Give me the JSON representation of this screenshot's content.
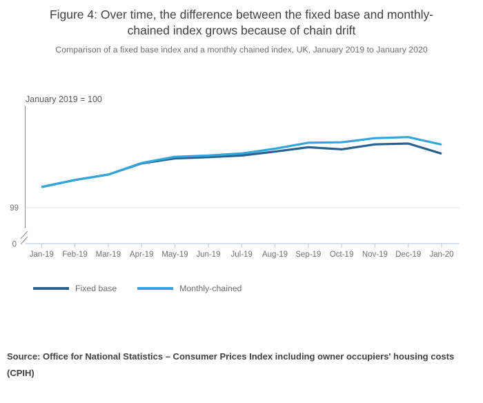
{
  "figure": {
    "title": "Figure 4: Over time, the difference between the fixed base and monthly-chained index grows because of chain drift",
    "subtitle": "Comparison of a fixed base index and a monthly chained index, UK, January 2019 to January 2020"
  },
  "chart_data": {
    "type": "line",
    "axis_note": "January 2019 = 100",
    "categories": [
      "Jan-19",
      "Feb-19",
      "Mar-19",
      "Apr-19",
      "May-19",
      "Jun-19",
      "Jul-19",
      "Aug-19",
      "Sep-19",
      "Oct-19",
      "Nov-19",
      "Dec-19",
      "Jan-20"
    ],
    "series": [
      {
        "name": "Fixed base",
        "color": "#266192",
        "values": [
          100,
          100.34,
          100.6,
          101.14,
          101.38,
          101.44,
          101.52,
          101.71,
          101.92,
          101.82,
          102.06,
          102.1,
          101.61
        ]
      },
      {
        "name": "Monthly-chained",
        "color": "#34A5DA",
        "values": [
          100,
          100.34,
          100.6,
          101.16,
          101.46,
          101.52,
          101.62,
          101.85,
          102.14,
          102.16,
          102.36,
          102.41,
          102.05
        ]
      }
    ],
    "y_axis": {
      "visible_tick_labels": [
        "99",
        "0"
      ],
      "broken_axis": true,
      "base_value": 100,
      "gridline_values": [
        99
      ]
    },
    "x_axis": {
      "label": "",
      "tick_count": 13
    },
    "legend_position": "bottom-left",
    "grid": "y-only"
  },
  "source": {
    "text": "Source: Office for National Statistics – Consumer Prices Index including owner occupiers' housing costs (CPIH)"
  }
}
